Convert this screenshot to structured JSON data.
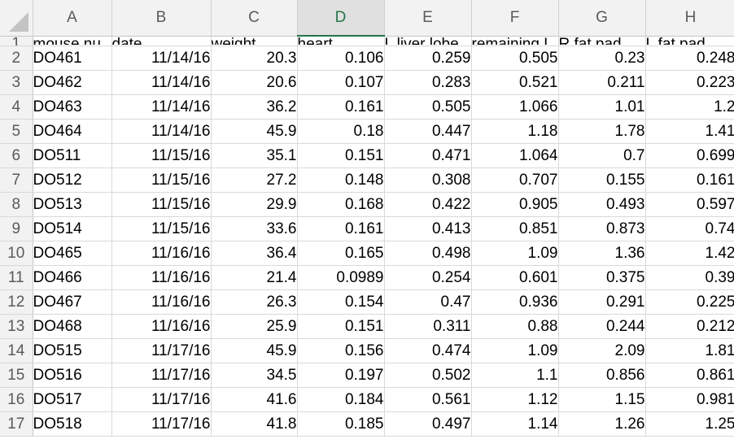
{
  "spreadsheet": {
    "selected_column": "D",
    "columns": [
      "A",
      "B",
      "C",
      "D",
      "E",
      "F",
      "G",
      "H"
    ],
    "header_row_number": "1",
    "header_cells": [
      "mouse nu",
      "date",
      "weight",
      "heart",
      "L liver lobe",
      "remaining L",
      "R fat pad",
      "L fat pad"
    ],
    "rows": [
      {
        "num": "2",
        "cells": [
          "DO461",
          "11/14/16",
          "20.3",
          "0.106",
          "0.259",
          "0.505",
          "0.23",
          "0.248"
        ]
      },
      {
        "num": "3",
        "cells": [
          "DO462",
          "11/14/16",
          "20.6",
          "0.107",
          "0.283",
          "0.521",
          "0.211",
          "0.223"
        ]
      },
      {
        "num": "4",
        "cells": [
          "DO463",
          "11/14/16",
          "36.2",
          "0.161",
          "0.505",
          "1.066",
          "1.01",
          "1.2"
        ]
      },
      {
        "num": "5",
        "cells": [
          "DO464",
          "11/14/16",
          "45.9",
          "0.18",
          "0.447",
          "1.18",
          "1.78",
          "1.41"
        ]
      },
      {
        "num": "6",
        "cells": [
          "DO511",
          "11/15/16",
          "35.1",
          "0.151",
          "0.471",
          "1.064",
          "0.7",
          "0.699"
        ]
      },
      {
        "num": "7",
        "cells": [
          "DO512",
          "11/15/16",
          "27.2",
          "0.148",
          "0.308",
          "0.707",
          "0.155",
          "0.161"
        ]
      },
      {
        "num": "8",
        "cells": [
          "DO513",
          "11/15/16",
          "29.9",
          "0.168",
          "0.422",
          "0.905",
          "0.493",
          "0.597"
        ]
      },
      {
        "num": "9",
        "cells": [
          "DO514",
          "11/15/16",
          "33.6",
          "0.161",
          "0.413",
          "0.851",
          "0.873",
          "0.74"
        ]
      },
      {
        "num": "10",
        "cells": [
          "DO465",
          "11/16/16",
          "36.4",
          "0.165",
          "0.498",
          "1.09",
          "1.36",
          "1.42"
        ]
      },
      {
        "num": "11",
        "cells": [
          "DO466",
          "11/16/16",
          "21.4",
          "0.0989",
          "0.254",
          "0.601",
          "0.375",
          "0.39"
        ]
      },
      {
        "num": "12",
        "cells": [
          "DO467",
          "11/16/16",
          "26.3",
          "0.154",
          "0.47",
          "0.936",
          "0.291",
          "0.225"
        ]
      },
      {
        "num": "13",
        "cells": [
          "DO468",
          "11/16/16",
          "25.9",
          "0.151",
          "0.311",
          "0.88",
          "0.244",
          "0.212"
        ]
      },
      {
        "num": "14",
        "cells": [
          "DO515",
          "11/17/16",
          "45.9",
          "0.156",
          "0.474",
          "1.09",
          "2.09",
          "1.81"
        ]
      },
      {
        "num": "15",
        "cells": [
          "DO516",
          "11/17/16",
          "34.5",
          "0.197",
          "0.502",
          "1.1",
          "0.856",
          "0.861"
        ]
      },
      {
        "num": "16",
        "cells": [
          "DO517",
          "11/17/16",
          "41.6",
          "0.184",
          "0.561",
          "1.12",
          "1.15",
          "0.981"
        ]
      },
      {
        "num": "17",
        "cells": [
          "DO518",
          "11/17/16",
          "41.8",
          "0.185",
          "0.497",
          "1.14",
          "1.26",
          "1.25"
        ]
      }
    ]
  },
  "colors": {
    "accent_selected": "#227447",
    "header_bg": "#f2f2f2",
    "gridline": "#d9d9d9"
  }
}
